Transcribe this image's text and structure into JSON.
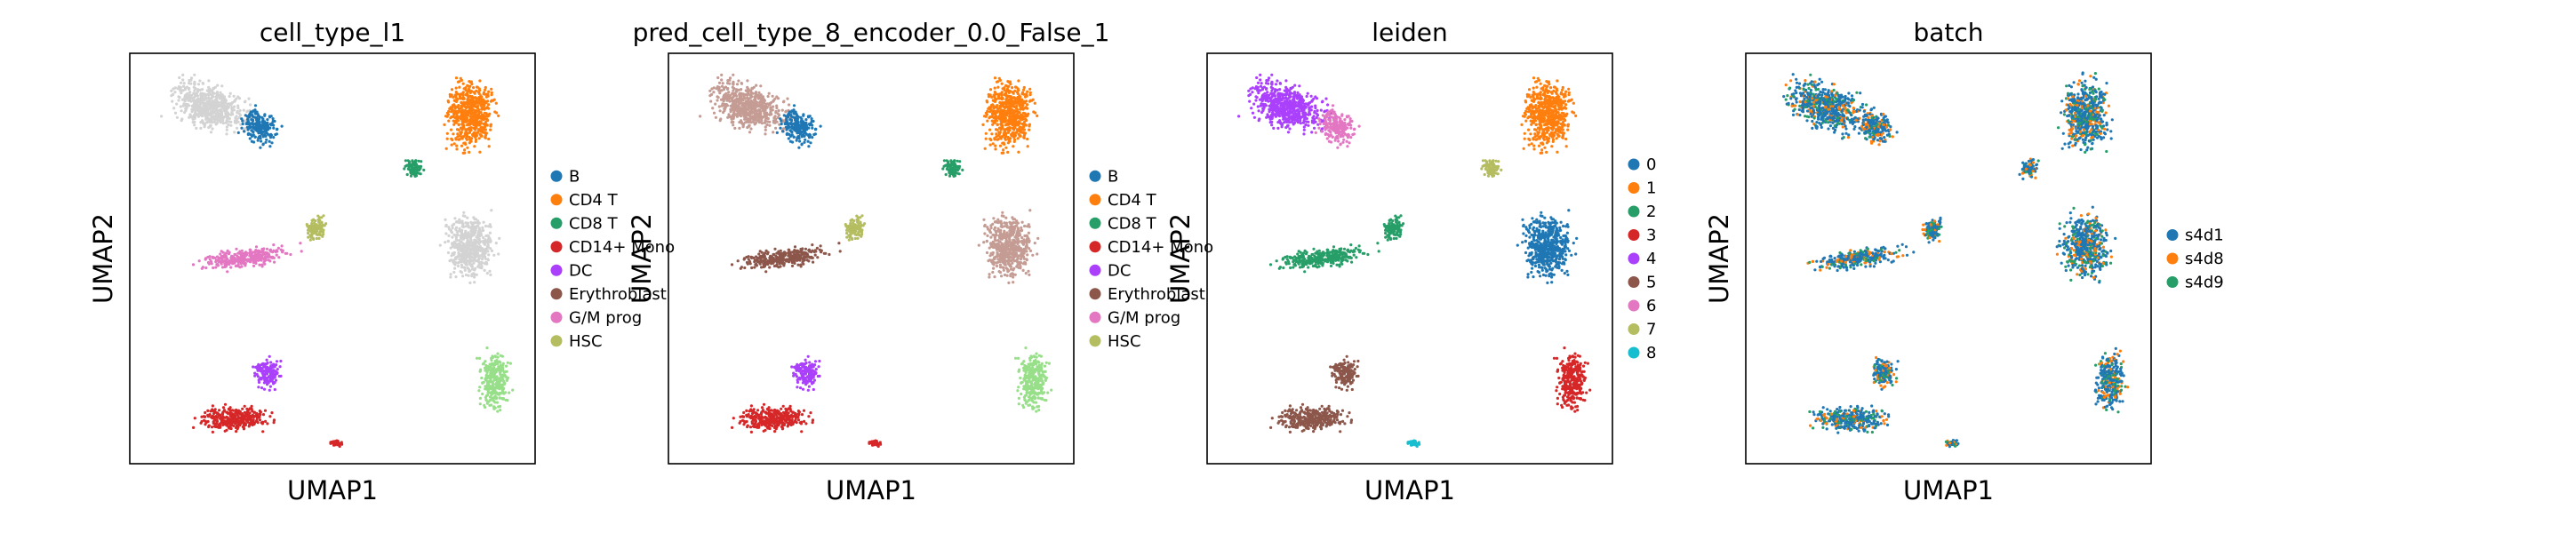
{
  "figure": {
    "x_axis_label": "UMAP1",
    "y_axis_label": "UMAP2"
  },
  "chart_data": [
    {
      "type": "scatter",
      "title": "cell_type_l1",
      "xlabel": "UMAP1",
      "ylabel": "UMAP2",
      "grid": false,
      "legend_position": "right",
      "legend": [
        {
          "label": "B",
          "color": "#1f77b4"
        },
        {
          "label": "CD4 T",
          "color": "#ff7f0e"
        },
        {
          "label": "CD8 T",
          "color": "#279e68"
        },
        {
          "label": "CD14+ Mono",
          "color": "#d62728"
        },
        {
          "label": "DC",
          "color": "#aa40fc"
        },
        {
          "label": "Erythroblast",
          "color": "#8c564b"
        },
        {
          "label": "G/M prog",
          "color": "#e377c2"
        },
        {
          "label": "HSC",
          "color": "#b5bd61"
        }
      ]
    },
    {
      "type": "scatter",
      "title": "pred_cell_type_8_encoder_0.0_False_1",
      "xlabel": "UMAP1",
      "ylabel": "UMAP2",
      "grid": false,
      "legend_position": "right",
      "legend": [
        {
          "label": "B",
          "color": "#1f77b4"
        },
        {
          "label": "CD4 T",
          "color": "#ff7f0e"
        },
        {
          "label": "CD8 T",
          "color": "#279e68"
        },
        {
          "label": "CD14+ Mono",
          "color": "#d62728"
        },
        {
          "label": "DC",
          "color": "#aa40fc"
        },
        {
          "label": "Erythroblast",
          "color": "#8c564b"
        },
        {
          "label": "G/M prog",
          "color": "#e377c2"
        },
        {
          "label": "HSC",
          "color": "#b5bd61"
        }
      ]
    },
    {
      "type": "scatter",
      "title": "leiden",
      "xlabel": "UMAP1",
      "ylabel": "UMAP2",
      "grid": false,
      "legend_position": "right",
      "legend": [
        {
          "label": "0",
          "color": "#1f77b4"
        },
        {
          "label": "1",
          "color": "#ff7f0e"
        },
        {
          "label": "2",
          "color": "#279e68"
        },
        {
          "label": "3",
          "color": "#d62728"
        },
        {
          "label": "4",
          "color": "#aa40fc"
        },
        {
          "label": "5",
          "color": "#8c564b"
        },
        {
          "label": "6",
          "color": "#e377c2"
        },
        {
          "label": "7",
          "color": "#b5bd61"
        },
        {
          "label": "8",
          "color": "#17becf"
        }
      ]
    },
    {
      "type": "scatter",
      "title": "batch",
      "xlabel": "UMAP1",
      "ylabel": "UMAP2",
      "grid": false,
      "legend_position": "right",
      "legend": [
        {
          "label": "s4d1",
          "color": "#1f77b4"
        },
        {
          "label": "s4d8",
          "color": "#ff7f0e"
        },
        {
          "label": "s4d9",
          "color": "#279e68"
        }
      ]
    }
  ]
}
